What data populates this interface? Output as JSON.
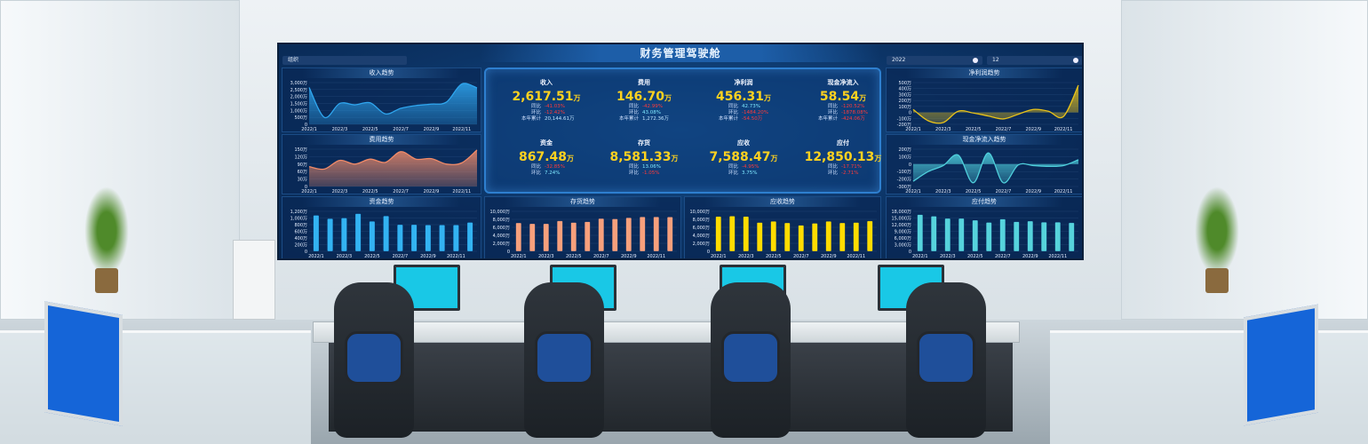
{
  "dashboard": {
    "title": "财务管理驾驶舱",
    "org_select": {
      "label": "组织"
    },
    "year_select": {
      "value": "2022"
    },
    "month_select": {
      "value": "12"
    }
  },
  "kpis": [
    {
      "label": "收入",
      "value": "2,617.51",
      "unit": "万",
      "rows": [
        {
          "label": "同比",
          "value": "-41.03%",
          "color": "#ff3a3a"
        },
        {
          "label": "环比",
          "value": "-12.42%",
          "color": "#ff3a3a"
        },
        {
          "label": "本年累计",
          "value": "20,144.61万",
          "color": "#bfe4ff"
        }
      ]
    },
    {
      "label": "费用",
      "value": "146.70",
      "unit": "万",
      "rows": [
        {
          "label": "同比",
          "value": "-42.99%",
          "color": "#ff3a3a"
        },
        {
          "label": "环比",
          "value": "43.08%",
          "color": "#7fe8ff"
        },
        {
          "label": "本年累计",
          "value": "1,272.36万",
          "color": "#bfe4ff"
        }
      ]
    },
    {
      "label": "净利润",
      "value": "456.31",
      "unit": "万",
      "rows": [
        {
          "label": "同比",
          "value": "42.73%",
          "color": "#7fe8ff"
        },
        {
          "label": "环比",
          "value": "-1484.20%",
          "color": "#ff3a3a"
        },
        {
          "label": "本年累计",
          "value": "-54.50万",
          "color": "#ff3a3a"
        }
      ]
    },
    {
      "label": "现金净流入",
      "value": "58.54",
      "unit": "万",
      "rows": [
        {
          "label": "同比",
          "value": "-120.52%",
          "color": "#ff3a3a"
        },
        {
          "label": "环比",
          "value": "-1878.08%",
          "color": "#ff3a3a"
        },
        {
          "label": "本年累计",
          "value": "-424.06万",
          "color": "#ff3a3a"
        }
      ]
    },
    {
      "label": "资金",
      "value": "867.48",
      "unit": "万",
      "rows": [
        {
          "label": "同比",
          "value": "-32.85%",
          "color": "#ff3a3a"
        },
        {
          "label": "环比",
          "value": "7.24%",
          "color": "#7fe8ff"
        }
      ]
    },
    {
      "label": "存货",
      "value": "8,581.33",
      "unit": "万",
      "rows": [
        {
          "label": "同比",
          "value": "13.06%",
          "color": "#7fe8ff"
        },
        {
          "label": "环比",
          "value": "-1.05%",
          "color": "#ff3a3a"
        }
      ]
    },
    {
      "label": "应收",
      "value": "7,588.47",
      "unit": "万",
      "rows": [
        {
          "label": "同比",
          "value": "-4.95%",
          "color": "#ff3a3a"
        },
        {
          "label": "环比",
          "value": "3.75%",
          "color": "#7fe8ff"
        }
      ]
    },
    {
      "label": "应付",
      "value": "12,850.13",
      "unit": "万",
      "rows": [
        {
          "label": "同比",
          "value": "-17.71%",
          "color": "#ff3a3a"
        },
        {
          "label": "环比",
          "value": "-2.71%",
          "color": "#ff3a3a"
        }
      ]
    }
  ],
  "chart_data": [
    {
      "id": "income",
      "title": "收入趋势",
      "type": "area",
      "color": "#2fa6ef",
      "categories": [
        "2022/1",
        "2022/2",
        "2022/3",
        "2022/4",
        "2022/5",
        "2022/6",
        "2022/7",
        "2022/8",
        "2022/9",
        "2022/10",
        "2022/11",
        "2022/12"
      ],
      "values": [
        2650,
        500,
        1500,
        1400,
        1550,
        750,
        1150,
        1350,
        1450,
        1600,
        2900,
        2617.51
      ],
      "ylim": [
        0,
        3000
      ],
      "yticks": [
        0,
        500,
        1000,
        1500,
        2000,
        2500,
        3000
      ],
      "ytick_labels": [
        "0",
        "500万",
        "1,000万",
        "1,500万",
        "2,000万",
        "2,500万",
        "3,000万"
      ],
      "xtick_labels": [
        "2022/1",
        "2022/3",
        "2022/5",
        "2022/7",
        "2022/9",
        "2022/11"
      ]
    },
    {
      "id": "expense",
      "title": "费用趋势",
      "type": "area",
      "color": "#f08a68",
      "categories": [
        "2022/1",
        "2022/2",
        "2022/3",
        "2022/4",
        "2022/5",
        "2022/6",
        "2022/7",
        "2022/8",
        "2022/9",
        "2022/10",
        "2022/11",
        "2022/12"
      ],
      "values": [
        80,
        70,
        105,
        90,
        110,
        97,
        140,
        110,
        112,
        90,
        95,
        146.7
      ],
      "ylim": [
        0,
        150
      ],
      "yticks": [
        0,
        30,
        60,
        90,
        120,
        150
      ],
      "ytick_labels": [
        "0",
        "30万",
        "60万",
        "90万",
        "120万",
        "150万"
      ],
      "xtick_labels": [
        "2022/1",
        "2022/3",
        "2022/5",
        "2022/7",
        "2022/9",
        "2022/11"
      ]
    },
    {
      "id": "profit",
      "title": "净利润趋势",
      "type": "area",
      "color": "#e8c21a",
      "categories": [
        "2022/1",
        "2022/2",
        "2022/3",
        "2022/4",
        "2022/5",
        "2022/6",
        "2022/7",
        "2022/8",
        "2022/9",
        "2022/10",
        "2022/11",
        "2022/12"
      ],
      "values": [
        50,
        -140,
        -170,
        20,
        -10,
        -60,
        -110,
        -30,
        50,
        20,
        -70,
        456.31
      ],
      "ylim": [
        -200,
        500
      ],
      "yticks": [
        -200,
        -100,
        0,
        100,
        200,
        300,
        400,
        500
      ],
      "ytick_labels": [
        "-200万",
        "-100万",
        "0",
        "100万",
        "200万",
        "300万",
        "400万",
        "500万"
      ],
      "xtick_labels": [
        "2022/1",
        "2022/3",
        "2022/5",
        "2022/7",
        "2022/9",
        "2022/11"
      ]
    },
    {
      "id": "cashflow",
      "title": "现金净流入趋势",
      "type": "area",
      "color": "#4fcfdc",
      "categories": [
        "2022/1",
        "2022/2",
        "2022/3",
        "2022/4",
        "2022/5",
        "2022/6",
        "2022/7",
        "2022/8",
        "2022/9",
        "2022/10",
        "2022/11",
        "2022/12"
      ],
      "values": [
        -230,
        -100,
        -20,
        120,
        -250,
        150,
        -250,
        -10,
        -20,
        -30,
        -20,
        58.54
      ],
      "ylim": [
        -300,
        200
      ],
      "yticks": [
        -300,
        -200,
        -100,
        0,
        100,
        200
      ],
      "ytick_labels": [
        "-300万",
        "-200万",
        "-100万",
        "0",
        "100万",
        "200万"
      ],
      "xtick_labels": [
        "2022/1",
        "2022/3",
        "2022/5",
        "2022/7",
        "2022/9",
        "2022/11"
      ]
    },
    {
      "id": "funds",
      "title": "资金趋势",
      "type": "bar",
      "color": "#33b3f2",
      "categories": [
        "2022/1",
        "2022/2",
        "2022/3",
        "2022/4",
        "2022/5",
        "2022/6",
        "2022/7",
        "2022/8",
        "2022/9",
        "2022/10",
        "2022/11",
        "2022/12"
      ],
      "values": [
        1080,
        980,
        1000,
        1130,
        900,
        1060,
        800,
        800,
        790,
        790,
        790,
        867.48
      ],
      "ylim": [
        0,
        1200
      ],
      "yticks": [
        0,
        200,
        400,
        600,
        800,
        1000,
        1200
      ],
      "ytick_labels": [
        "0",
        "200万",
        "400万",
        "600万",
        "800万",
        "1,000万",
        "1,200万"
      ],
      "xtick_labels": [
        "2022/1",
        "2022/3",
        "2022/5",
        "2022/7",
        "2022/9",
        "2022/11"
      ]
    },
    {
      "id": "inventory",
      "title": "存货趋势",
      "type": "bar",
      "color": "#f7a07c",
      "categories": [
        "2022/1",
        "2022/2",
        "2022/3",
        "2022/4",
        "2022/5",
        "2022/6",
        "2022/7",
        "2022/8",
        "2022/9",
        "2022/10",
        "2022/11",
        "2022/12"
      ],
      "values": [
        7100,
        6900,
        6900,
        7600,
        7200,
        7400,
        8200,
        8100,
        8400,
        8600,
        8600,
        8581.33
      ],
      "ylim": [
        0,
        10000
      ],
      "yticks": [
        0,
        2000,
        4000,
        6000,
        8000,
        10000
      ],
      "ytick_labels": [
        "0",
        "2,000万",
        "4,000万",
        "6,000万",
        "8,000万",
        "10,000万"
      ],
      "xtick_labels": [
        "2022/1",
        "2022/3",
        "2022/5",
        "2022/7",
        "2022/9",
        "2022/11"
      ]
    },
    {
      "id": "receivable",
      "title": "应收趋势",
      "type": "bar",
      "color": "#ffdc00",
      "categories": [
        "2022/1",
        "2022/2",
        "2022/3",
        "2022/4",
        "2022/5",
        "2022/6",
        "2022/7",
        "2022/8",
        "2022/9",
        "2022/10",
        "2022/11",
        "2022/12"
      ],
      "values": [
        8700,
        8800,
        8700,
        7200,
        7500,
        7100,
        6500,
        7000,
        7500,
        7100,
        7200,
        7588.47
      ],
      "ylim": [
        0,
        10000
      ],
      "yticks": [
        0,
        2000,
        4000,
        6000,
        8000,
        10000
      ],
      "ytick_labels": [
        "0",
        "2,000万",
        "4,000万",
        "6,000万",
        "8,000万",
        "10,000万"
      ],
      "xtick_labels": [
        "2022/1",
        "2022/3",
        "2022/5",
        "2022/7",
        "2022/9",
        "2022/11"
      ]
    },
    {
      "id": "payable",
      "title": "应付趋势",
      "type": "bar",
      "color": "#56d3dc",
      "categories": [
        "2022/1",
        "2022/2",
        "2022/3",
        "2022/4",
        "2022/5",
        "2022/6",
        "2022/7",
        "2022/8",
        "2022/9",
        "2022/10",
        "2022/11",
        "2022/12"
      ],
      "values": [
        16500,
        15800,
        14800,
        14800,
        14000,
        13000,
        14500,
        13300,
        13600,
        13100,
        13100,
        12850.13
      ],
      "ylim": [
        0,
        18000
      ],
      "yticks": [
        0,
        3000,
        6000,
        9000,
        12000,
        15000,
        18000
      ],
      "ytick_labels": [
        "0",
        "3,000万",
        "6,000万",
        "9,000万",
        "12,000万",
        "15,000万",
        "18,000万"
      ],
      "xtick_labels": [
        "2022/1",
        "2022/3",
        "2022/5",
        "2022/7",
        "2022/9",
        "2022/11"
      ]
    }
  ]
}
